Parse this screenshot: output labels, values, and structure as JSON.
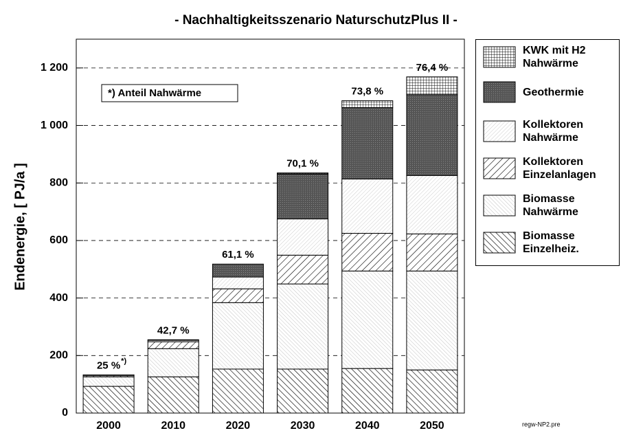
{
  "chart_data": {
    "type": "stacked_bar",
    "title": "- Nachhaltigkeitsszenario NaturschutzPlus II -",
    "y_label": "Endenergie, [ PJ/a ]",
    "categories": [
      "2000",
      "2010",
      "2020",
      "2030",
      "2040",
      "2050"
    ],
    "series": [
      {
        "name": "Biomasse Einzelheiz.",
        "color": "#000000",
        "pattern": "dense-back",
        "values": [
          93,
          126,
          153,
          153,
          155,
          150
        ]
      },
      {
        "name": "Biomasse Nahwärme",
        "color": "#000000",
        "pattern": "fine-back",
        "values": [
          33,
          98,
          231,
          296,
          339,
          344
        ]
      },
      {
        "name": "Kollektoren Einzelanlagen",
        "color": "#000000",
        "pattern": "forward",
        "values": [
          4,
          24,
          48,
          100,
          131,
          129
        ]
      },
      {
        "name": "Kollektoren Nahwärme",
        "color": "#000000",
        "pattern": "fine-forward",
        "values": [
          3,
          5,
          41,
          126,
          189,
          203
        ]
      },
      {
        "name": "Geothermie",
        "color": "#555555",
        "pattern": "dark",
        "values": [
          0,
          2,
          45,
          156,
          248,
          281
        ]
      },
      {
        "name": "KWK mit H2 Nahwärme",
        "color": "#000000",
        "pattern": "grid",
        "values": [
          0,
          0,
          0,
          4,
          24,
          62
        ]
      }
    ],
    "annotations": [
      "25 %",
      "42,7 %",
      "61,1 %",
      "70,1 %",
      "73,8 %",
      "76,4 %"
    ],
    "note_marker": "*)",
    "note": "*) Anteil Nahwärme",
    "footer": "regw-NP2.pre",
    "ylim": [
      0,
      1300
    ],
    "yticks": [
      0,
      200,
      400,
      600,
      800,
      {
        "value": 1000,
        "label": "1 000"
      },
      {
        "value": 1200,
        "label": "1 200"
      }
    ],
    "grid": true
  }
}
